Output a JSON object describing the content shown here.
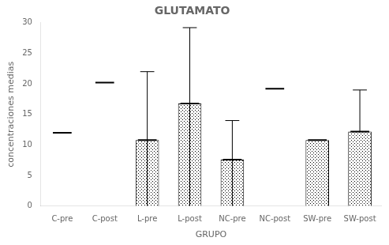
{
  "chart_data": {
    "type": "bar",
    "title": "GLUTAMATO",
    "xlabel": "GRUPO",
    "ylabel": "concentraciones medias",
    "categories": [
      "C-pre",
      "C-post",
      "L-pre",
      "L-post",
      "NC-pre",
      "NC-post",
      "SW-pre",
      "SW-post"
    ],
    "values": [
      null,
      null,
      10.8,
      16.8,
      7.6,
      null,
      10.8,
      12.2
    ],
    "means": [
      12.0,
      20.2,
      10.8,
      16.8,
      7.6,
      19.2,
      10.8,
      12.2
    ],
    "whisker_top": [
      null,
      null,
      22.0,
      29.2,
      14.0,
      null,
      null,
      19.0
    ],
    "whisker_bottom": [
      null,
      null,
      0.0,
      0.0,
      0.0,
      null,
      null,
      12.2
    ],
    "color": "#ffffff",
    "ylim": [
      0,
      30
    ],
    "yticks": [
      0,
      5,
      10,
      15,
      20,
      25,
      30
    ],
    "grid": false
  }
}
